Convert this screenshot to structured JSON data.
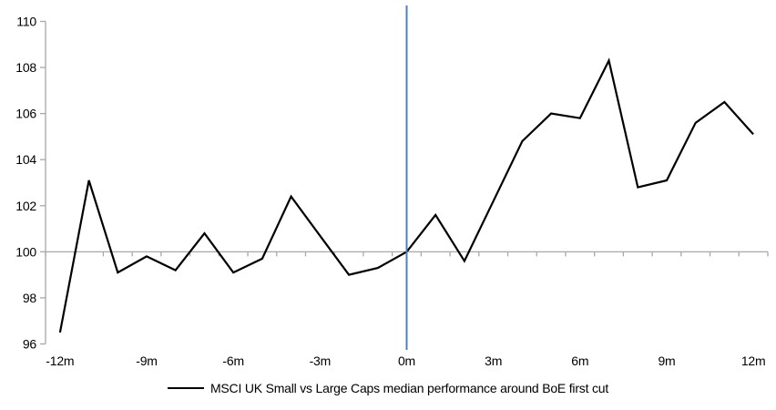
{
  "chart_data": {
    "type": "line",
    "title": "",
    "categories": [
      "-12m",
      "-11m",
      "-10m",
      "-9m",
      "-8m",
      "-7m",
      "-6m",
      "-5m",
      "-4m",
      "-3m",
      "-2m",
      "-1m",
      "0m",
      "1m",
      "2m",
      "3m",
      "4m",
      "5m",
      "6m",
      "7m",
      "8m",
      "9m",
      "10m",
      "11m",
      "12m"
    ],
    "xlabel_every": 3,
    "xtick_labels_shown": [
      "-12m",
      "-9m",
      "-6m",
      "-3m",
      "0m",
      "3m",
      "6m",
      "9m",
      "12m"
    ],
    "series": [
      {
        "name": "MSCI UK Small vs Large Caps median performance around BoE first cut",
        "color": "#000000",
        "values": [
          96.5,
          103.1,
          99.1,
          99.8,
          99.2,
          100.8,
          99.1,
          99.7,
          102.4,
          100.7,
          99.0,
          99.3,
          100.0,
          101.6,
          99.6,
          102.2,
          104.8,
          106.0,
          105.8,
          108.3,
          102.8,
          103.1,
          105.6,
          106.5,
          105.1
        ]
      }
    ],
    "ylim": [
      96,
      110
    ],
    "yticks": [
      110,
      108,
      106,
      104,
      102,
      100,
      98,
      96
    ],
    "baseline_value": 100,
    "grid": false,
    "axis_color": "#A8A8A8",
    "event_line": {
      "category": "0m",
      "color": "#4F81BD"
    },
    "legend_position": "bottom"
  }
}
